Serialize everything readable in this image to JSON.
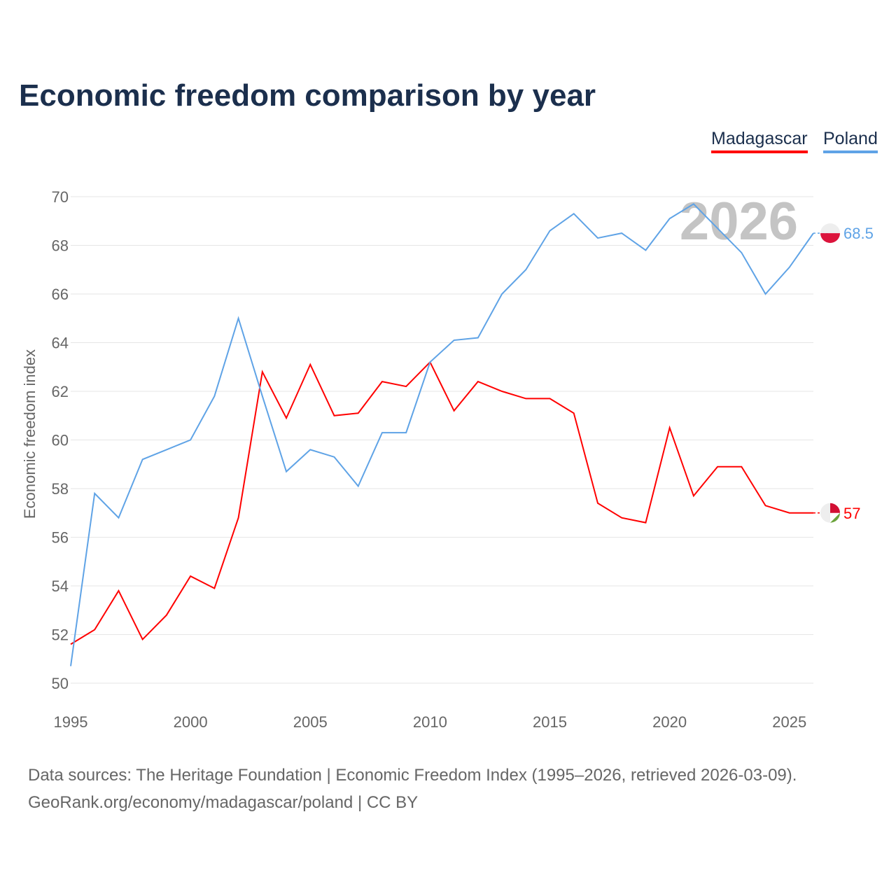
{
  "title": "Economic freedom comparison by year",
  "source_line1": "Data sources: The Heritage Foundation | Economic Freedom Index (1995–2026, retrieved 2026-03-09).",
  "source_line2": "GeoRank.org/economy/madagascar/poland | CC BY",
  "chart_data": {
    "type": "line",
    "title": "Economic freedom comparison by year",
    "xlabel": "",
    "ylabel": "Economic freedom index",
    "xlim": [
      1995,
      2026
    ],
    "ylim": [
      50,
      70
    ],
    "xticks": [
      1995,
      2000,
      2005,
      2010,
      2015,
      2020,
      2025
    ],
    "yticks": [
      50,
      52,
      54,
      56,
      58,
      60,
      62,
      64,
      66,
      68,
      70
    ],
    "year_watermark": "2026",
    "legend_position": "top-right",
    "x": [
      1995,
      1996,
      1997,
      1998,
      1999,
      2000,
      2001,
      2002,
      2003,
      2004,
      2005,
      2006,
      2007,
      2008,
      2009,
      2010,
      2011,
      2012,
      2013,
      2014,
      2015,
      2016,
      2017,
      2018,
      2019,
      2020,
      2021,
      2022,
      2023,
      2024,
      2025,
      2026
    ],
    "series": [
      {
        "name": "Madagascar",
        "color": "#ff0000",
        "end_label": "57",
        "values": [
          51.6,
          52.2,
          53.8,
          51.8,
          52.8,
          54.4,
          53.9,
          56.8,
          62.8,
          60.9,
          63.1,
          61.0,
          61.1,
          62.4,
          62.2,
          63.2,
          61.2,
          62.4,
          62.0,
          61.7,
          61.7,
          61.1,
          57.4,
          56.8,
          56.6,
          60.5,
          57.7,
          58.9,
          58.9,
          57.3,
          57.0,
          57.0
        ]
      },
      {
        "name": "Poland",
        "color": "#5fa3e6",
        "end_label": "68.5",
        "values": [
          50.7,
          57.8,
          56.8,
          59.2,
          59.6,
          60.0,
          61.8,
          65.0,
          61.8,
          58.7,
          59.6,
          59.3,
          58.1,
          60.3,
          60.3,
          63.2,
          64.1,
          64.2,
          66.0,
          67.0,
          68.6,
          69.3,
          68.3,
          68.5,
          67.8,
          69.1,
          69.7,
          68.7,
          67.7,
          66.0,
          67.1,
          68.5
        ]
      }
    ]
  }
}
